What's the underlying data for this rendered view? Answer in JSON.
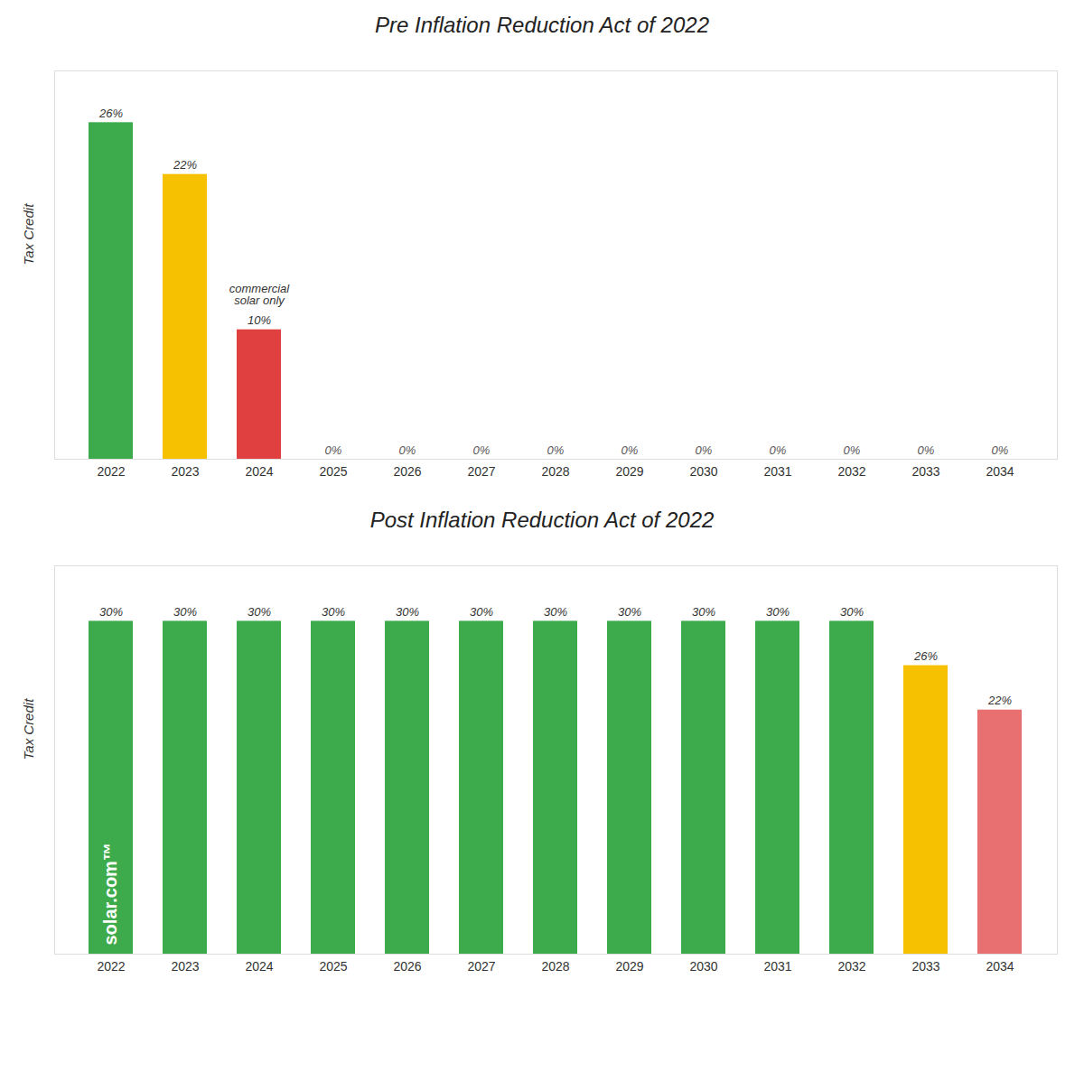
{
  "chart_data": [
    {
      "type": "bar",
      "title": "Pre Inflation Reduction Act of 2022",
      "categories": [
        "2022",
        "2023",
        "2024",
        "2025",
        "2026",
        "2027",
        "2028",
        "2029",
        "2030",
        "2031",
        "2032",
        "2033",
        "2034"
      ],
      "values": [
        26,
        22,
        10,
        0,
        0,
        0,
        0,
        0,
        0,
        0,
        0,
        0,
        0
      ],
      "value_labels": [
        "26%",
        "22%",
        "10%",
        "0%",
        "0%",
        "0%",
        "0%",
        "0%",
        "0%",
        "0%",
        "0%",
        "0%",
        "0%"
      ],
      "colors": [
        "#3dab4b",
        "#f5c100",
        "#e04040",
        "#ffffff",
        "#ffffff",
        "#ffffff",
        "#ffffff",
        "#ffffff",
        "#ffffff",
        "#ffffff",
        "#ffffff",
        "#ffffff",
        "#ffffff"
      ],
      "ylabel": "Tax Credit",
      "ylim": [
        0,
        30
      ],
      "data_labels": true,
      "tick_labels": "x",
      "grid": false,
      "annotations": [
        {
          "text": "commercial\nsolar only",
          "category": "2024"
        }
      ]
    },
    {
      "type": "bar",
      "title": "Post Inflation Reduction Act of 2022",
      "categories": [
        "2022",
        "2023",
        "2024",
        "2025",
        "2026",
        "2027",
        "2028",
        "2029",
        "2030",
        "2031",
        "2032",
        "2033",
        "2034"
      ],
      "values": [
        30,
        30,
        30,
        30,
        30,
        30,
        30,
        30,
        30,
        30,
        30,
        26,
        22
      ],
      "value_labels": [
        "30%",
        "30%",
        "30%",
        "30%",
        "30%",
        "30%",
        "30%",
        "30%",
        "30%",
        "30%",
        "30%",
        "26%",
        "22%"
      ],
      "colors": [
        "#3dab4b",
        "#3dab4b",
        "#3dab4b",
        "#3dab4b",
        "#3dab4b",
        "#3dab4b",
        "#3dab4b",
        "#3dab4b",
        "#3dab4b",
        "#3dab4b",
        "#3dab4b",
        "#f5c100",
        "#e87070"
      ],
      "ylabel": "Tax Credit",
      "ylim": [
        0,
        35
      ],
      "data_labels": true,
      "tick_labels": "x",
      "grid": false,
      "watermark": {
        "text": "solar.com™",
        "category": "2022"
      }
    }
  ]
}
